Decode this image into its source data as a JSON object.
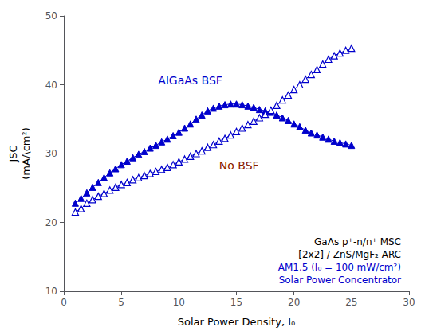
{
  "chart_data": {
    "type": "line",
    "xlabel": "Solar Power Density, I₀",
    "ylabel": "JSC\n(mA/\\cm²)",
    "x": [
      1.0,
      1.5,
      2.0,
      2.5,
      3.0,
      3.5,
      4.0,
      4.5,
      5.0,
      5.5,
      6.0,
      6.5,
      7.0,
      7.5,
      8.0,
      8.5,
      9.0,
      9.5,
      10.0,
      10.5,
      11.0,
      11.5,
      12.0,
      12.5,
      13.0,
      13.5,
      14.0,
      14.5,
      15.0,
      15.5,
      16.0,
      16.5,
      17.0,
      17.5,
      18.0,
      18.5,
      19.0,
      19.5,
      20.0,
      20.5,
      21.0,
      21.5,
      22.0,
      22.5,
      23.0,
      23.5,
      24.0,
      24.5,
      25.0
    ],
    "series": [
      {
        "color": "#0000CC",
        "marker": "triangle",
        "line_style": "solid",
        "values": [
          22.8,
          23.5,
          24.3,
          25.1,
          25.8,
          26.5,
          27.2,
          27.8,
          28.4,
          28.9,
          29.4,
          29.9,
          30.3,
          30.8,
          31.2,
          31.7,
          32.1,
          32.6,
          33.1,
          33.7,
          34.3,
          35.0,
          35.6,
          36.2,
          36.6,
          36.9,
          37.1,
          37.2,
          37.2,
          37.1,
          36.9,
          36.7,
          36.4,
          36.2,
          36.0,
          35.6,
          35.2,
          34.8,
          34.3,
          33.9,
          33.4,
          33.0,
          32.7,
          32.4,
          32.1,
          31.8,
          31.6,
          31.4,
          31.2
        ]
      },
      {
        "color": "#0000CC",
        "marker": "triangle-open",
        "line_style": "solid",
        "values": [
          21.5,
          22.0,
          22.8,
          23.3,
          23.8,
          24.2,
          24.7,
          25.1,
          25.5,
          25.8,
          26.2,
          26.5,
          26.8,
          27.1,
          27.4,
          27.7,
          28.0,
          28.4,
          28.8,
          29.2,
          29.6,
          30.0,
          30.4,
          30.9,
          31.3,
          31.8,
          32.2,
          32.7,
          33.2,
          33.7,
          34.2,
          34.7,
          35.2,
          35.7,
          36.3,
          37.0,
          37.8,
          38.5,
          39.3,
          40.0,
          40.8,
          41.5,
          42.2,
          43.0,
          43.7,
          44.2,
          44.6,
          45.0,
          45.3
        ]
      }
    ],
    "annotations": [
      {
        "text": "AlGaAs BSF",
        "x": 8.2,
        "y": 39.8,
        "color": "#0000CC"
      },
      {
        "text": "No BSF",
        "x": 13.5,
        "y": 27.5,
        "color": "#8B2000"
      },
      {
        "text": "GaAs p⁺-n/n⁺ MSC",
        "color": "#000000"
      },
      {
        "text": "[2x2] / ZnS/MgF₂ ARC",
        "color": "#000000"
      },
      {
        "text": "AM1.5 (I₀ = 100 mW/cm²)",
        "color": "#0000CC"
      },
      {
        "text": "Solar Power Concentrator",
        "color": "#0000CC"
      }
    ],
    "xlim": [
      0,
      30
    ],
    "ylim": [
      10,
      50
    ],
    "xticks": [
      0,
      5,
      10,
      15,
      20,
      25,
      30
    ],
    "yticks": [
      10,
      20,
      30,
      40,
      50
    ],
    "grid": false
  }
}
